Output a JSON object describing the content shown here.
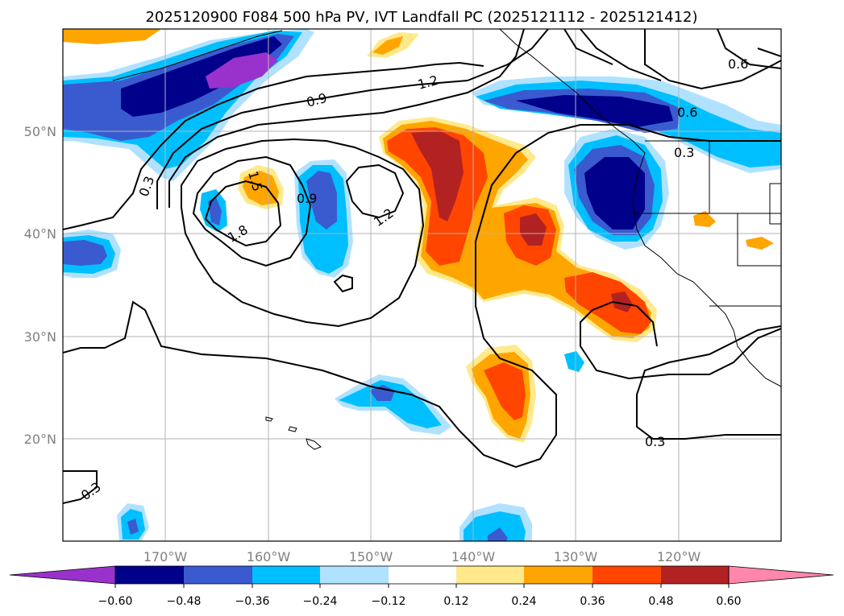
{
  "title": "2025120900 F084 500 hPa PV, IVT Landfall PC (2025121112 - 2025121412)",
  "axes": {
    "lon_ticks": [
      "170°W",
      "160°W",
      "150°W",
      "140°W",
      "130°W",
      "120°W"
    ],
    "lat_ticks": [
      "50°N",
      "40°N",
      "30°N",
      "20°N"
    ]
  },
  "map": {
    "lon_range": [
      -180,
      -110
    ],
    "lat_range": [
      10,
      60
    ],
    "gridlines": true,
    "coastlines": true,
    "borders": true
  },
  "contour_labels": [
    "0.6",
    "0.6",
    "1.2",
    "0.9",
    "0.3",
    "0.3",
    "1.5",
    "0.9",
    "1.8",
    "1.2",
    "0.3",
    "0.3"
  ],
  "colorbar": {
    "labels": [
      "−0.60",
      "−0.48",
      "−0.36",
      "−0.24",
      "−0.12",
      "0.12",
      "0.24",
      "0.36",
      "0.48",
      "0.60"
    ],
    "colors": [
      "#9932cc",
      "#00008b",
      "#3a5bd0",
      "#00bfff",
      "#b0e2ff",
      "#ffffff",
      "#ffe98a",
      "#ffa500",
      "#ff4500",
      "#b22222",
      "#ff88aa"
    ]
  },
  "fill_colors": {
    "neg_strong": "#00008b",
    "neg_med": "#3a5bd0",
    "neg_weak": "#00bfff",
    "neg_faint": "#b0e2ff",
    "neg_extreme": "#9932cc",
    "pos_faint": "#ffe98a",
    "pos_weak": "#ffa500",
    "pos_med": "#ff4500",
    "pos_strong": "#b22222"
  }
}
